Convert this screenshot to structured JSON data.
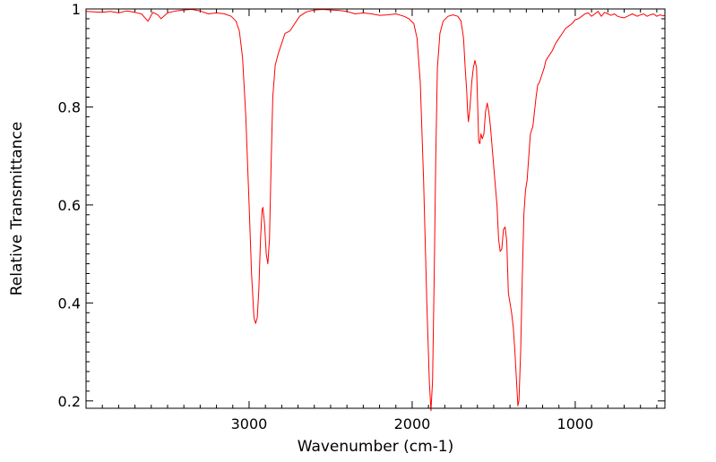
{
  "chart_data": {
    "type": "line",
    "title": "",
    "xlabel": "Wavenumber (cm-1)",
    "ylabel": "Relative Transmittance",
    "xlim": [
      4000,
      450
    ],
    "ylim": [
      0.185,
      1.0
    ],
    "x_axis_reversed": true,
    "grid": false,
    "legend": "none",
    "x_ticks": [
      {
        "value": 3000,
        "label": "3000"
      },
      {
        "value": 2000,
        "label": "2000"
      },
      {
        "value": 1000,
        "label": "1000"
      }
    ],
    "y_ticks": [
      {
        "value": 0.2,
        "label": "0.2"
      },
      {
        "value": 0.4,
        "label": "0.4"
      },
      {
        "value": 0.6,
        "label": "0.6"
      },
      {
        "value": 0.8,
        "label": "0.8"
      },
      {
        "value": 1.0,
        "label": "1"
      }
    ],
    "series": [
      {
        "color": "#ff0000",
        "points": [
          [
            4000,
            0.995
          ],
          [
            3900,
            0.993
          ],
          [
            3850,
            0.995
          ],
          [
            3800,
            0.992
          ],
          [
            3750,
            0.996
          ],
          [
            3700,
            0.993
          ],
          [
            3660,
            0.99
          ],
          [
            3620,
            0.975
          ],
          [
            3590,
            0.993
          ],
          [
            3560,
            0.988
          ],
          [
            3540,
            0.98
          ],
          [
            3500,
            0.992
          ],
          [
            3450,
            0.996
          ],
          [
            3400,
            0.998
          ],
          [
            3350,
            0.999
          ],
          [
            3300,
            0.996
          ],
          [
            3250,
            0.99
          ],
          [
            3200,
            0.992
          ],
          [
            3150,
            0.99
          ],
          [
            3110,
            0.985
          ],
          [
            3080,
            0.975
          ],
          [
            3060,
            0.955
          ],
          [
            3040,
            0.9
          ],
          [
            3020,
            0.78
          ],
          [
            3000,
            0.6
          ],
          [
            2985,
            0.46
          ],
          [
            2970,
            0.37
          ],
          [
            2960,
            0.358
          ],
          [
            2950,
            0.37
          ],
          [
            2940,
            0.43
          ],
          [
            2930,
            0.53
          ],
          [
            2920,
            0.59
          ],
          [
            2915,
            0.595
          ],
          [
            2905,
            0.56
          ],
          [
            2895,
            0.5
          ],
          [
            2885,
            0.48
          ],
          [
            2875,
            0.53
          ],
          [
            2865,
            0.68
          ],
          [
            2855,
            0.82
          ],
          [
            2840,
            0.885
          ],
          [
            2820,
            0.91
          ],
          [
            2800,
            0.93
          ],
          [
            2780,
            0.95
          ],
          [
            2750,
            0.955
          ],
          [
            2720,
            0.97
          ],
          [
            2690,
            0.985
          ],
          [
            2650,
            0.994
          ],
          [
            2600,
            0.998
          ],
          [
            2550,
            0.999
          ],
          [
            2500,
            0.998
          ],
          [
            2450,
            0.997
          ],
          [
            2400,
            0.995
          ],
          [
            2350,
            0.99
          ],
          [
            2300,
            0.992
          ],
          [
            2250,
            0.99
          ],
          [
            2200,
            0.987
          ],
          [
            2150,
            0.988
          ],
          [
            2100,
            0.99
          ],
          [
            2050,
            0.985
          ],
          [
            2020,
            0.98
          ],
          [
            1990,
            0.97
          ],
          [
            1970,
            0.94
          ],
          [
            1950,
            0.85
          ],
          [
            1930,
            0.65
          ],
          [
            1910,
            0.4
          ],
          [
            1895,
            0.24
          ],
          [
            1885,
            0.18
          ],
          [
            1875,
            0.24
          ],
          [
            1865,
            0.45
          ],
          [
            1855,
            0.7
          ],
          [
            1845,
            0.88
          ],
          [
            1830,
            0.95
          ],
          [
            1810,
            0.975
          ],
          [
            1780,
            0.985
          ],
          [
            1750,
            0.988
          ],
          [
            1720,
            0.985
          ],
          [
            1700,
            0.975
          ],
          [
            1685,
            0.94
          ],
          [
            1675,
            0.88
          ],
          [
            1665,
            0.83
          ],
          [
            1660,
            0.79
          ],
          [
            1655,
            0.77
          ],
          [
            1645,
            0.8
          ],
          [
            1635,
            0.85
          ],
          [
            1625,
            0.88
          ],
          [
            1615,
            0.895
          ],
          [
            1605,
            0.88
          ],
          [
            1598,
            0.8
          ],
          [
            1592,
            0.73
          ],
          [
            1585,
            0.725
          ],
          [
            1578,
            0.745
          ],
          [
            1570,
            0.735
          ],
          [
            1560,
            0.745
          ],
          [
            1550,
            0.79
          ],
          [
            1540,
            0.808
          ],
          [
            1530,
            0.79
          ],
          [
            1520,
            0.76
          ],
          [
            1510,
            0.72
          ],
          [
            1500,
            0.68
          ],
          [
            1490,
            0.64
          ],
          [
            1480,
            0.6
          ],
          [
            1470,
            0.53
          ],
          [
            1460,
            0.505
          ],
          [
            1450,
            0.51
          ],
          [
            1440,
            0.55
          ],
          [
            1430,
            0.555
          ],
          [
            1420,
            0.525
          ],
          [
            1410,
            0.42
          ],
          [
            1400,
            0.4
          ],
          [
            1390,
            0.38
          ],
          [
            1380,
            0.35
          ],
          [
            1370,
            0.3
          ],
          [
            1360,
            0.24
          ],
          [
            1352,
            0.19
          ],
          [
            1345,
            0.2
          ],
          [
            1335,
            0.3
          ],
          [
            1325,
            0.45
          ],
          [
            1315,
            0.58
          ],
          [
            1305,
            0.63
          ],
          [
            1295,
            0.65
          ],
          [
            1285,
            0.7
          ],
          [
            1275,
            0.745
          ],
          [
            1260,
            0.76
          ],
          [
            1250,
            0.79
          ],
          [
            1240,
            0.82
          ],
          [
            1230,
            0.845
          ],
          [
            1220,
            0.85
          ],
          [
            1210,
            0.86
          ],
          [
            1200,
            0.87
          ],
          [
            1190,
            0.88
          ],
          [
            1180,
            0.895
          ],
          [
            1170,
            0.9
          ],
          [
            1160,
            0.905
          ],
          [
            1150,
            0.91
          ],
          [
            1140,
            0.915
          ],
          [
            1120,
            0.93
          ],
          [
            1100,
            0.94
          ],
          [
            1080,
            0.95
          ],
          [
            1060,
            0.96
          ],
          [
            1040,
            0.965
          ],
          [
            1020,
            0.97
          ],
          [
            1000,
            0.978
          ],
          [
            980,
            0.98
          ],
          [
            960,
            0.985
          ],
          [
            940,
            0.99
          ],
          [
            920,
            0.992
          ],
          [
            900,
            0.985
          ],
          [
            880,
            0.99
          ],
          [
            860,
            0.995
          ],
          [
            840,
            0.985
          ],
          [
            820,
            0.993
          ],
          [
            800,
            0.99
          ],
          [
            780,
            0.987
          ],
          [
            760,
            0.99
          ],
          [
            740,
            0.985
          ],
          [
            720,
            0.983
          ],
          [
            700,
            0.982
          ],
          [
            680,
            0.985
          ],
          [
            650,
            0.99
          ],
          [
            620,
            0.985
          ],
          [
            600,
            0.988
          ],
          [
            580,
            0.99
          ],
          [
            560,
            0.985
          ],
          [
            540,
            0.988
          ],
          [
            520,
            0.99
          ],
          [
            500,
            0.985
          ],
          [
            480,
            0.988
          ],
          [
            460,
            0.986
          ],
          [
            450,
            0.987
          ]
        ]
      }
    ]
  }
}
